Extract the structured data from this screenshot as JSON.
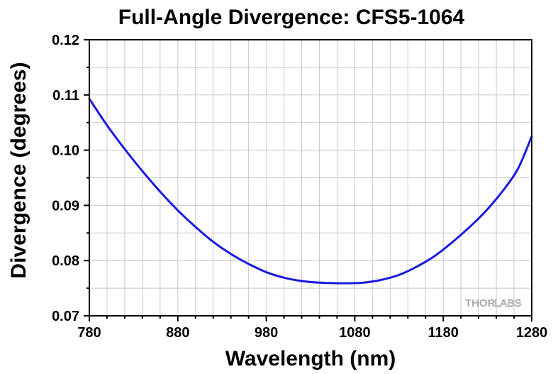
{
  "chart_data": {
    "type": "line",
    "title": "Full-Angle Divergence: CFS5-1064",
    "xlabel": "Wavelength (nm)",
    "ylabel": "Divergence (degrees)",
    "xlim": [
      780,
      1280
    ],
    "ylim": [
      0.07,
      0.12
    ],
    "xticks": [
      "780",
      "880",
      "980",
      "1080",
      "1180",
      "1280"
    ],
    "yticks": [
      "0.07",
      "0.08",
      "0.09",
      "0.10",
      "0.11",
      "0.12"
    ],
    "grid": true,
    "series": [
      {
        "color": "#1a1adf",
        "x": [
          780,
          800,
          820,
          840,
          860,
          880,
          900,
          920,
          940,
          960,
          980,
          1000,
          1020,
          1040,
          1060,
          1075,
          1090,
          1110,
          1130,
          1150,
          1170,
          1190,
          1210,
          1230,
          1250,
          1265,
          1280
        ],
        "y": [
          0.1093,
          0.1045,
          0.1002,
          0.0962,
          0.0925,
          0.0891,
          0.0861,
          0.0834,
          0.0812,
          0.0794,
          0.0779,
          0.0769,
          0.0763,
          0.076,
          0.0759,
          0.0759,
          0.076,
          0.0765,
          0.0774,
          0.0789,
          0.0808,
          0.0833,
          0.0861,
          0.0893,
          0.0932,
          0.0968,
          0.1025
        ]
      }
    ]
  },
  "watermark": {
    "left": "THOR",
    "right": "LABS"
  }
}
